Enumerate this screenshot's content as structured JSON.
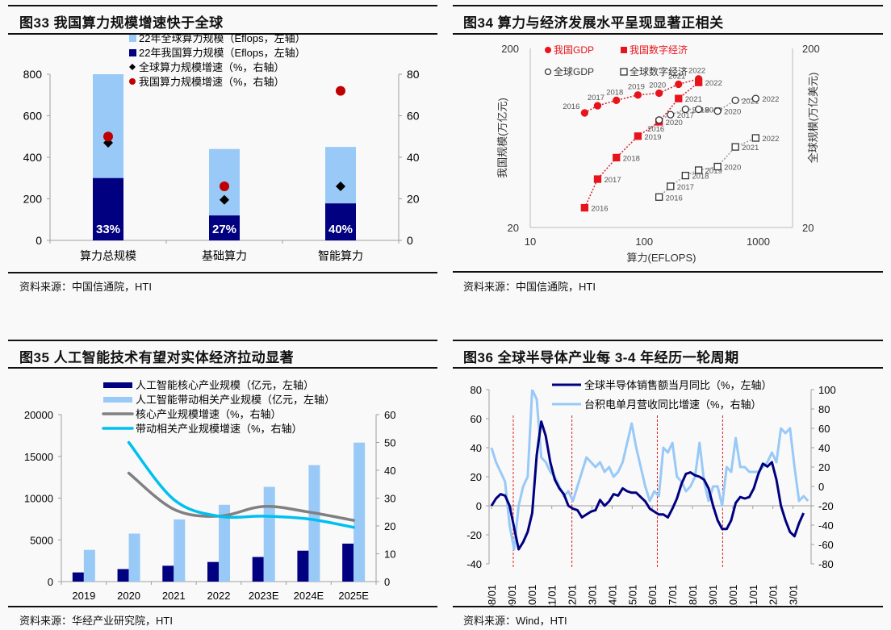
{
  "panels": [
    {
      "id": "fig33",
      "title": "图33 我国算力规模增速快于全球",
      "source": "资料来源：中国信通院，HTI"
    },
    {
      "id": "fig34",
      "title": "图34 算力与经济发展水平呈现显著正相关",
      "source": "资料来源：中国信通院，HTI"
    },
    {
      "id": "fig35",
      "title": "图35 人工智能技术有望对实体经济拉动显著",
      "source": "资料来源：华经产业研究院，HTI"
    },
    {
      "id": "fig36",
      "title": "图36 全球半导体产业每 3-4 年经历一轮周期",
      "source": "资料来源：Wind，HTI"
    }
  ],
  "colors": {
    "navy": "#000080",
    "lightblue": "#99c9f7",
    "red": "#c00000",
    "brightred": "#e8141c",
    "gray": "#808080",
    "cyan": "#00c0f0",
    "axis": "#a0a0a0"
  },
  "chart_data": [
    {
      "type": "bar",
      "title": "图33 我国算力规模增速快于全球",
      "categories": [
        "算力总规模",
        "基础算力",
        "智能算力"
      ],
      "series": [
        {
          "name": "22年全球算力规模（Eflops，左轴）",
          "kind": "bar",
          "axis": "left",
          "values": [
            800,
            440,
            450
          ]
        },
        {
          "name": "22年我国算力规模（Eflops，左轴）",
          "kind": "bar",
          "axis": "left",
          "values": [
            300,
            120,
            178
          ]
        },
        {
          "name": "全球算力规模增速（%，右轴）",
          "kind": "diamond",
          "axis": "right",
          "values": [
            47,
            19.5,
            26
          ]
        },
        {
          "name": "我国算力规模增速（%，右轴）",
          "kind": "circle",
          "axis": "right",
          "values": [
            50,
            26,
            72
          ]
        }
      ],
      "bar_labels": [
        "33%",
        "27%",
        "40%"
      ],
      "ylim_left": [
        0,
        800
      ],
      "yticks_left": [
        0,
        200,
        400,
        600,
        800
      ],
      "ylim_right": [
        0,
        80
      ],
      "yticks_right": [
        0,
        20,
        40,
        60,
        80
      ],
      "legend": "top-center"
    },
    {
      "type": "scatter",
      "title": "图34 算力与经济发展水平呈现显著正相关",
      "xlabel": "算力(EFLOPS)",
      "ylabel_left": "我国规模(万亿元)",
      "ylabel_right": "全球规模(万亿美元)",
      "xscale": "log",
      "xlim": [
        10,
        2000
      ],
      "xticks": [
        10,
        100,
        1000
      ],
      "ylim_left": [
        20,
        200
      ],
      "yticks_left": [
        20,
        200
      ],
      "ylim_right": [
        20,
        200
      ],
      "yticks_right": [
        20,
        200
      ],
      "legend": "top-left",
      "series": [
        {
          "name": "我国GDP",
          "marker": "filled-circle",
          "color": "#e8141c",
          "points": [
            {
              "label": "2016",
              "x": 30,
              "y": 0.64
            },
            {
              "label": "2017",
              "x": 39,
              "y": 0.68
            },
            {
              "label": "2018",
              "x": 57,
              "y": 0.71
            },
            {
              "label": "2019",
              "x": 88,
              "y": 0.74
            },
            {
              "label": "2020",
              "x": 135,
              "y": 0.75
            },
            {
              "label": "2021",
              "x": 200,
              "y": 0.8
            },
            {
              "label": "2022",
              "x": 300,
              "y": 0.83
            }
          ]
        },
        {
          "name": "我国数字经济",
          "marker": "filled-square",
          "color": "#e8141c",
          "points": [
            {
              "label": "2016",
              "x": 30,
              "y": 0.11
            },
            {
              "label": "2017",
              "x": 39,
              "y": 0.27
            },
            {
              "label": "2018",
              "x": 57,
              "y": 0.39
            },
            {
              "label": "2019",
              "x": 88,
              "y": 0.51
            },
            {
              "label": "2020",
              "x": 135,
              "y": 0.59
            },
            {
              "label": "2021",
              "x": 200,
              "y": 0.72
            },
            {
              "label": "2022",
              "x": 300,
              "y": 0.81
            }
          ]
        },
        {
          "name": "全球GDP",
          "marker": "open-circle",
          "color": "#333333",
          "points": [
            {
              "label": "2016",
              "x": 135,
              "y": 0.6
            },
            {
              "label": "2017",
              "x": 170,
              "y": 0.63
            },
            {
              "label": "2018",
              "x": 230,
              "y": 0.66
            },
            {
              "label": "2019",
              "x": 300,
              "y": 0.66
            },
            {
              "label": "2020",
              "x": 440,
              "y": 0.65
            },
            {
              "label": "2021",
              "x": 630,
              "y": 0.71
            },
            {
              "label": "2022",
              "x": 950,
              "y": 0.72
            }
          ]
        },
        {
          "name": "全球数字经济",
          "marker": "open-square",
          "color": "#333333",
          "points": [
            {
              "label": "2016",
              "x": 135,
              "y": 0.17
            },
            {
              "label": "2017",
              "x": 170,
              "y": 0.23
            },
            {
              "label": "2018",
              "x": 230,
              "y": 0.29
            },
            {
              "label": "2019",
              "x": 300,
              "y": 0.32
            },
            {
              "label": "2020",
              "x": 440,
              "y": 0.34
            },
            {
              "label": "2021",
              "x": 630,
              "y": 0.45
            },
            {
              "label": "2022",
              "x": 950,
              "y": 0.5
            }
          ]
        }
      ],
      "y_note": "y given as fraction of log axis between 20 and 200"
    },
    {
      "type": "bar",
      "title": "图35 人工智能技术有望对实体经济拉动显著",
      "categories": [
        "2019",
        "2020",
        "2021",
        "2022",
        "2023E",
        "2024E",
        "2025E"
      ],
      "series": [
        {
          "name": "人工智能核心产业规模（亿元，左轴）",
          "kind": "bar",
          "axis": "left",
          "values": [
            1100,
            1500,
            1900,
            2350,
            2950,
            3700,
            4550
          ]
        },
        {
          "name": "人工智能带动相关产业规模（亿元，左轴）",
          "kind": "bar",
          "axis": "left",
          "values": [
            3800,
            5750,
            7450,
            9200,
            11350,
            13950,
            16650
          ]
        },
        {
          "name": "核心产业规模增速（%，右轴）",
          "kind": "line",
          "axis": "right",
          "values": [
            null,
            39,
            26,
            23.5,
            27,
            25,
            22
          ]
        },
        {
          "name": "带动相关产业规模增速（%，右轴）",
          "kind": "line",
          "axis": "right",
          "values": [
            null,
            50,
            29.5,
            23.5,
            23.5,
            22.5,
            19.5
          ]
        }
      ],
      "ylim_left": [
        0,
        20000
      ],
      "yticks_left": [
        0,
        5000,
        10000,
        15000,
        20000
      ],
      "ylim_right": [
        0,
        60
      ],
      "yticks_right": [
        0,
        10,
        20,
        30,
        40,
        50,
        60
      ],
      "legend": "top-center"
    },
    {
      "type": "line",
      "title": "图36 全球半导体产业每 3-4 年经历一轮周期",
      "x": [
        "08/01",
        "09/01",
        "10/01",
        "11/01",
        "12/01",
        "13/01",
        "14/01",
        "15/01",
        "16/01",
        "17/01",
        "18/01",
        "19/01",
        "20/01",
        "21/01",
        "22/01",
        "23/01"
      ],
      "ylim_left": [
        -40,
        80
      ],
      "yticks_left": [
        -40,
        -20,
        0,
        20,
        40,
        60,
        80
      ],
      "ylim_right": [
        -80,
        100
      ],
      "yticks_right": [
        -80,
        -60,
        -40,
        -20,
        0,
        20,
        40,
        60,
        80,
        100
      ],
      "cycle_markers": [
        "2009-02",
        "2012-01",
        "2016-04",
        "2019-07"
      ],
      "legend": "top-center",
      "series": [
        {
          "name": "全球半导体销售额当月同比（%，左轴）",
          "axis": "left",
          "quarterly_from": "2008-01",
          "values": [
            0,
            5,
            8,
            7,
            0,
            -15,
            -30,
            -25,
            -18,
            -5,
            35,
            58,
            48,
            30,
            18,
            12,
            8,
            0,
            -2,
            -3,
            -8,
            -6,
            -4,
            -3,
            4,
            0,
            3,
            8,
            7,
            12,
            10,
            9,
            9,
            6,
            3,
            -2,
            -4,
            -6,
            -6,
            -8,
            -2,
            5,
            15,
            22,
            23,
            21,
            20,
            18,
            12,
            0,
            -10,
            -16,
            -16,
            -10,
            2,
            6,
            5,
            6,
            12,
            22,
            29,
            27,
            30,
            18,
            0,
            -10,
            -18,
            -21,
            -12,
            -5
          ]
        },
        {
          "name": "台积电单月营收同比增速（%，右轴）",
          "axis": "right",
          "quarterly_from": "2008-01",
          "values": [
            40,
            25,
            15,
            5,
            -40,
            -65,
            -20,
            0,
            10,
            100,
            90,
            30,
            25,
            15,
            10,
            0,
            -10,
            -5,
            -15,
            0,
            15,
            30,
            25,
            20,
            25,
            15,
            20,
            10,
            15,
            25,
            45,
            65,
            40,
            20,
            0,
            -15,
            -5,
            -10,
            40,
            35,
            45,
            10,
            5,
            -5,
            0,
            10,
            45,
            5,
            -15,
            0,
            0,
            -20,
            20,
            15,
            50,
            20,
            20,
            15,
            15,
            15,
            20,
            25,
            35,
            25,
            60,
            55,
            60,
            20,
            -15,
            -10,
            -15
          ]
        }
      ]
    }
  ]
}
